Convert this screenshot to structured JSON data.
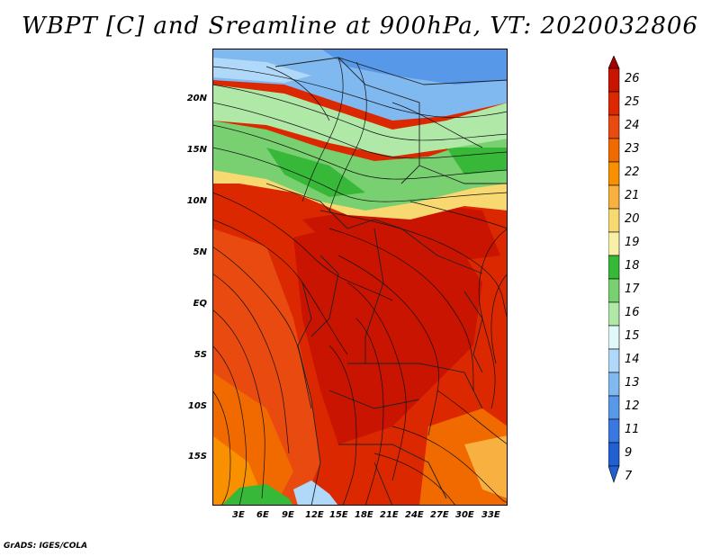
{
  "title": "WBPT [C] and Sreamline at 900hPa, VT: 2020032806",
  "lat_labels": [
    "20N",
    "15N",
    "10N",
    "5N",
    "EQ",
    "5S",
    "10S",
    "15S"
  ],
  "lon_labels": [
    "3E",
    "6E",
    "9E",
    "12E",
    "15E",
    "18E",
    "21E",
    "24E",
    "27E",
    "30E",
    "33E"
  ],
  "colorbar": {
    "labels": [
      "26",
      "25",
      "24",
      "23",
      "22",
      "21",
      "20",
      "19",
      "18",
      "17",
      "16",
      "15",
      "14",
      "13",
      "12",
      "11",
      "9",
      "7"
    ],
    "colors": [
      "#a50000",
      "#c81400",
      "#dc2800",
      "#e84a10",
      "#f06a00",
      "#f89000",
      "#f8b040",
      "#f8d870",
      "#f8f0a8",
      "#38b838",
      "#78d070",
      "#b0e8a8",
      "#e0f8f8",
      "#b0d8f8",
      "#80b8f0",
      "#5898e8",
      "#3878e0",
      "#2060d0"
    ]
  },
  "credit": "GrADS: IGES/COLA"
}
